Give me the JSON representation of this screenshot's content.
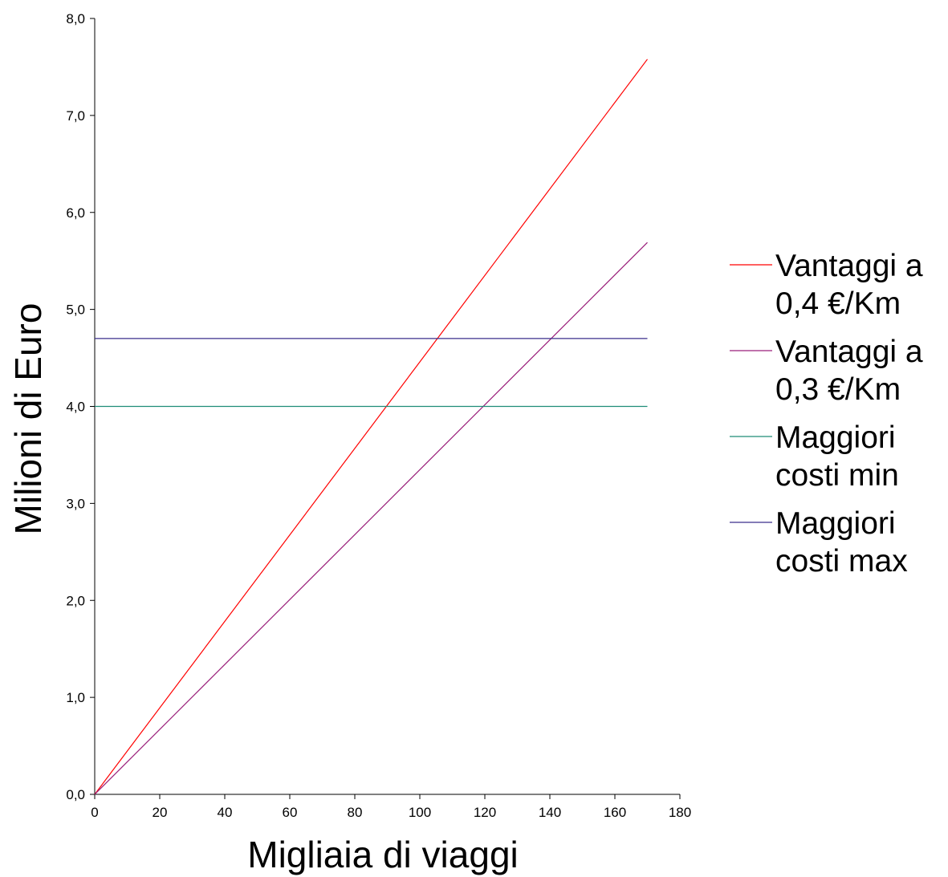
{
  "chart_data": {
    "type": "line",
    "xlabel": "Migliaia di viaggi",
    "ylabel": "Milioni di Euro",
    "xlim": [
      0,
      180
    ],
    "ylim": [
      0,
      8
    ],
    "x_ticks": [
      {
        "value": 0,
        "label": "0"
      },
      {
        "value": 20,
        "label": "20"
      },
      {
        "value": 40,
        "label": "40"
      },
      {
        "value": 60,
        "label": "60"
      },
      {
        "value": 80,
        "label": "80"
      },
      {
        "value": 100,
        "label": "100"
      },
      {
        "value": 120,
        "label": "120"
      },
      {
        "value": 140,
        "label": "140"
      },
      {
        "value": 160,
        "label": "160"
      },
      {
        "value": 180,
        "label": "180"
      }
    ],
    "y_ticks": [
      {
        "value": 0,
        "label": "0,0"
      },
      {
        "value": 1,
        "label": "1,0"
      },
      {
        "value": 2,
        "label": "2,0"
      },
      {
        "value": 3,
        "label": "3,0"
      },
      {
        "value": 4,
        "label": "4,0"
      },
      {
        "value": 5,
        "label": "5,0"
      },
      {
        "value": 6,
        "label": "6,0"
      },
      {
        "value": 7,
        "label": "7,0"
      },
      {
        "value": 8,
        "label": "8,0"
      }
    ],
    "grid": false,
    "legend_position": "right",
    "series": [
      {
        "name": "Vantaggi a 0,4 €/Km",
        "name_lines": [
          "Vantaggi a",
          "0,4 €/Km"
        ],
        "color": "#ff0000",
        "x": [
          0,
          170
        ],
        "y": [
          0,
          7.58
        ]
      },
      {
        "name": "Vantaggi a 0,3 €/Km",
        "name_lines": [
          "Vantaggi a",
          "0,3 €/Km"
        ],
        "color": "#9a1f7a",
        "x": [
          0,
          170
        ],
        "y": [
          0,
          5.69
        ]
      },
      {
        "name": "Maggiori costi min",
        "name_lines": [
          "Maggiori",
          "costi min"
        ],
        "color": "#1e8c78",
        "x": [
          0,
          170
        ],
        "y": [
          4.0,
          4.0
        ]
      },
      {
        "name": "Maggiori costi max",
        "name_lines": [
          "Maggiori",
          "costi max"
        ],
        "color": "#3a2e8c",
        "x": [
          0,
          170
        ],
        "y": [
          4.7,
          4.7
        ]
      }
    ]
  }
}
